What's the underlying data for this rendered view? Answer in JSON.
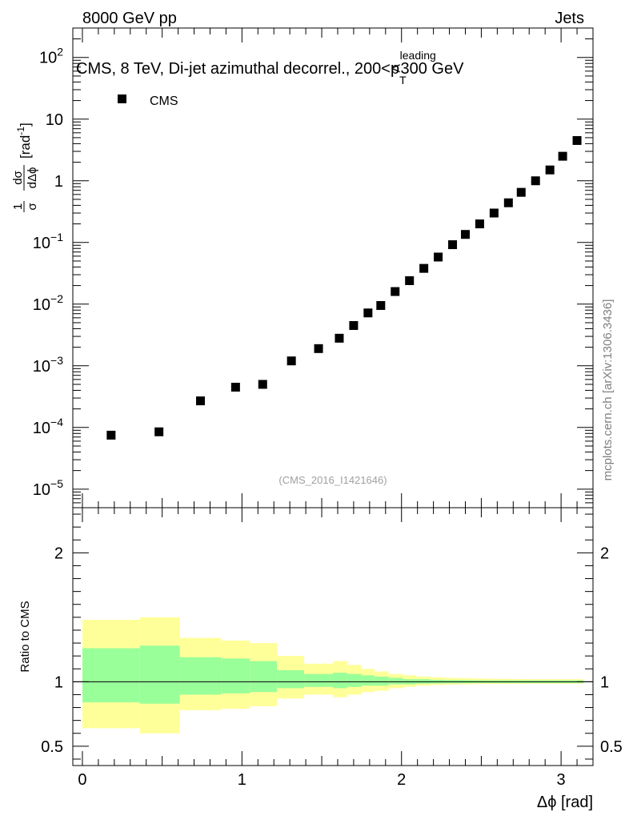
{
  "header": {
    "left": "8000 GeV pp",
    "right": "Jets",
    "side_label": "mcplots.cern.ch [arXiv:1306.3436]"
  },
  "chart_data": [
    {
      "type": "scatter",
      "title": "CMS, 8 TeV, Di-jet azimuthal decorrel., 200<p",
      "title_sub": "T",
      "title_sup": "leading",
      "title_end": "<300 GeV",
      "ylabel_num_a": "1",
      "ylabel_den_a": "σ",
      "ylabel_num_b": "dσ",
      "ylabel_den_b": "dΔϕ",
      "ylabel_unit": "[rad",
      "ylabel_unit_sup": "-1",
      "ylabel_unit_end": "]",
      "yscale": "log",
      "ylim": [
        5e-06,
        300
      ],
      "xlim": [
        -0.06,
        3.2
      ],
      "legend": {
        "label": "CMS",
        "placement": "top-left"
      },
      "watermark": "(CMS_2016_I1421646)",
      "y_ticks": [
        {
          "value": 100,
          "base": "10",
          "exp": "2"
        },
        {
          "value": 10,
          "base": "10",
          "exp": ""
        },
        {
          "value": 1,
          "base": "1",
          "exp": ""
        },
        {
          "value": 0.1,
          "base": "10",
          "exp": "−1"
        },
        {
          "value": 0.01,
          "base": "10",
          "exp": "−2"
        },
        {
          "value": 0.001,
          "base": "10",
          "exp": "−3"
        },
        {
          "value": 0.0001,
          "base": "10",
          "exp": "−4"
        },
        {
          "value": 1e-05,
          "base": "10",
          "exp": "−5"
        }
      ],
      "series": [
        {
          "name": "CMS",
          "x": [
            0.18,
            0.48,
            0.74,
            0.96,
            1.13,
            1.31,
            1.48,
            1.61,
            1.7,
            1.79,
            1.87,
            1.96,
            2.05,
            2.14,
            2.23,
            2.32,
            2.4,
            2.49,
            2.58,
            2.67,
            2.75,
            2.84,
            2.93,
            3.01,
            3.1
          ],
          "y": [
            7.5e-05,
            8.5e-05,
            0.00027,
            0.00045,
            0.0005,
            0.0012,
            0.0019,
            0.0028,
            0.0045,
            0.0072,
            0.0095,
            0.016,
            0.024,
            0.038,
            0.058,
            0.092,
            0.135,
            0.2,
            0.3,
            0.44,
            0.65,
            1.0,
            1.5,
            2.5,
            4.5
          ]
        }
      ]
    },
    {
      "type": "area",
      "ylabel": "Ratio to CMS",
      "xlabel": "Δϕ [rad]",
      "ylim": [
        0.35,
        2.35
      ],
      "xlim": [
        -0.06,
        3.2
      ],
      "reference_line": 1,
      "x_ticks": [
        "0",
        "1",
        "2",
        "3"
      ],
      "y_ticks": [
        "0.5",
        "1",
        "2"
      ],
      "y_tick_values": [
        0.5,
        1,
        2
      ],
      "band_colors": {
        "inner": "#99ff99",
        "outer": "#ffff99"
      },
      "bins": [
        {
          "x0": 0.0,
          "x1": 0.36,
          "inner": [
            0.84,
            1.26
          ],
          "outer": [
            0.64,
            1.48
          ]
        },
        {
          "x0": 0.36,
          "x1": 0.61,
          "inner": [
            0.83,
            1.28
          ],
          "outer": [
            0.6,
            1.5
          ]
        },
        {
          "x0": 0.61,
          "x1": 0.87,
          "inner": [
            0.9,
            1.19
          ],
          "outer": [
            0.78,
            1.34
          ]
        },
        {
          "x0": 0.87,
          "x1": 1.05,
          "inner": [
            0.91,
            1.18
          ],
          "outer": [
            0.79,
            1.32
          ]
        },
        {
          "x0": 1.05,
          "x1": 1.22,
          "inner": [
            0.92,
            1.16
          ],
          "outer": [
            0.81,
            1.3
          ]
        },
        {
          "x0": 1.22,
          "x1": 1.39,
          "inner": [
            0.95,
            1.09
          ],
          "outer": [
            0.87,
            1.2
          ]
        },
        {
          "x0": 1.39,
          "x1": 1.57,
          "inner": [
            0.96,
            1.06
          ],
          "outer": [
            0.9,
            1.14
          ]
        },
        {
          "x0": 1.57,
          "x1": 1.66,
          "inner": [
            0.95,
            1.07
          ],
          "outer": [
            0.88,
            1.16
          ]
        },
        {
          "x0": 1.66,
          "x1": 1.75,
          "inner": [
            0.96,
            1.06
          ],
          "outer": [
            0.9,
            1.13
          ]
        },
        {
          "x0": 1.75,
          "x1": 1.83,
          "inner": [
            0.97,
            1.05
          ],
          "outer": [
            0.92,
            1.1
          ]
        },
        {
          "x0": 1.83,
          "x1": 1.92,
          "inner": [
            0.97,
            1.04
          ],
          "outer": [
            0.93,
            1.08
          ]
        },
        {
          "x0": 1.92,
          "x1": 2.01,
          "inner": [
            0.98,
            1.03
          ],
          "outer": [
            0.95,
            1.06
          ]
        },
        {
          "x0": 2.01,
          "x1": 2.09,
          "inner": [
            0.98,
            1.02
          ],
          "outer": [
            0.96,
            1.05
          ]
        },
        {
          "x0": 2.09,
          "x1": 2.18,
          "inner": [
            0.985,
            1.02
          ],
          "outer": [
            0.97,
            1.04
          ]
        },
        {
          "x0": 2.18,
          "x1": 2.27,
          "inner": [
            0.987,
            1.015
          ],
          "outer": [
            0.975,
            1.035
          ]
        },
        {
          "x0": 2.27,
          "x1": 2.36,
          "inner": [
            0.988,
            1.013
          ],
          "outer": [
            0.978,
            1.03
          ]
        },
        {
          "x0": 2.36,
          "x1": 2.44,
          "inner": [
            0.989,
            1.012
          ],
          "outer": [
            0.98,
            1.028
          ]
        },
        {
          "x0": 2.44,
          "x1": 2.53,
          "inner": [
            0.99,
            1.011
          ],
          "outer": [
            0.982,
            1.025
          ]
        },
        {
          "x0": 2.53,
          "x1": 2.62,
          "inner": [
            0.99,
            1.01
          ],
          "outer": [
            0.983,
            1.023
          ]
        },
        {
          "x0": 2.62,
          "x1": 2.71,
          "inner": [
            0.99,
            1.01
          ],
          "outer": [
            0.984,
            1.022
          ]
        },
        {
          "x0": 2.71,
          "x1": 2.79,
          "inner": [
            0.99,
            1.01
          ],
          "outer": [
            0.984,
            1.021
          ]
        },
        {
          "x0": 2.79,
          "x1": 2.88,
          "inner": [
            0.99,
            1.01
          ],
          "outer": [
            0.985,
            1.02
          ]
        },
        {
          "x0": 2.88,
          "x1": 2.97,
          "inner": [
            0.99,
            1.01
          ],
          "outer": [
            0.985,
            1.02
          ]
        },
        {
          "x0": 2.97,
          "x1": 3.05,
          "inner": [
            0.99,
            1.01
          ],
          "outer": [
            0.985,
            1.02
          ]
        },
        {
          "x0": 3.05,
          "x1": 3.14,
          "inner": [
            0.99,
            1.01
          ],
          "outer": [
            0.985,
            1.02
          ]
        }
      ]
    }
  ]
}
